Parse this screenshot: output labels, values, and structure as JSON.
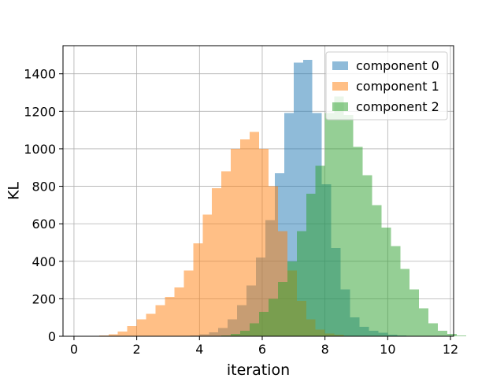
{
  "chart_data": {
    "type": "histogram",
    "title": "",
    "xlabel": "iteration",
    "ylabel": "KL",
    "xlim": [
      -0.35,
      12.1
    ],
    "ylim": [
      0,
      1550
    ],
    "xticks": [
      0,
      2,
      4,
      6,
      8,
      10,
      12
    ],
    "yticks": [
      0,
      200,
      400,
      600,
      800,
      1000,
      1200,
      1400
    ],
    "grid": true,
    "legend_position": "top-right",
    "bin_width": 0.3,
    "series": [
      {
        "name": "component 0",
        "color": "#1f77b4",
        "alpha": 0.5,
        "bin_start": 3.4,
        "counts": [
          3,
          5,
          10,
          20,
          45,
          90,
          165,
          270,
          420,
          620,
          870,
          1190,
          1460,
          1475,
          1190,
          810,
          470,
          250,
          100,
          50,
          30,
          18,
          8,
          4,
          2,
          1
        ]
      },
      {
        "name": "component 1",
        "color": "#ff7f0e",
        "alpha": 0.5,
        "bin_start": 0.8,
        "counts": [
          5,
          10,
          25,
          55,
          90,
          120,
          165,
          210,
          260,
          350,
          495,
          650,
          790,
          880,
          1000,
          1050,
          1090,
          1000,
          800,
          560,
          350,
          190,
          90,
          35,
          15,
          8
        ]
      },
      {
        "name": "component 2",
        "color": "#2ca02c",
        "alpha": 0.5,
        "bin_start": 4.7,
        "counts": [
          5,
          12,
          30,
          70,
          130,
          200,
          290,
          400,
          560,
          760,
          910,
          1190,
          1280,
          1180,
          1010,
          860,
          700,
          580,
          480,
          360,
          250,
          150,
          70,
          30,
          12,
          5
        ]
      }
    ]
  }
}
